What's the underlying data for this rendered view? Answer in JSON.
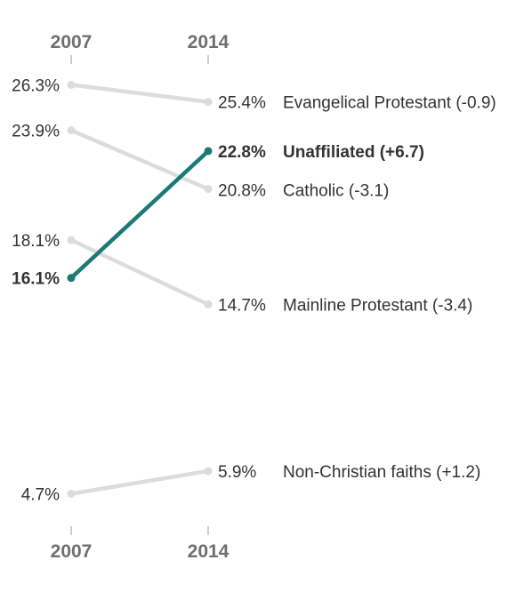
{
  "chart_data": {
    "type": "line",
    "x": [
      "2007",
      "2014"
    ],
    "highlight_color": "#1b7a78",
    "muted_color": "#dcdcdc",
    "series": [
      {
        "name": "Evangelical Protestant",
        "values": [
          26.3,
          25.4
        ],
        "start_label": "26.3%",
        "end_label": "25.4%",
        "series_label": "Evangelical Protestant (-0.9)",
        "highlight": false
      },
      {
        "name": "Unaffiliated",
        "values": [
          16.1,
          22.8
        ],
        "start_label": "16.1%",
        "end_label": "22.8%",
        "series_label": "Unaffiliated (+6.7)",
        "highlight": true
      },
      {
        "name": "Catholic",
        "values": [
          23.9,
          20.8
        ],
        "start_label": "23.9%",
        "end_label": "20.8%",
        "series_label": "Catholic (-3.1)",
        "highlight": false
      },
      {
        "name": "Mainline Protestant",
        "values": [
          18.1,
          14.7
        ],
        "start_label": "18.1%",
        "end_label": "14.7%",
        "series_label": "Mainline Protestant (-3.4)",
        "highlight": false
      },
      {
        "name": "Non-Christian faiths",
        "values": [
          4.7,
          5.9
        ],
        "start_label": "4.7%",
        "end_label": "5.9%",
        "series_label": "Non-Christian faiths (+1.2)",
        "highlight": false
      }
    ]
  }
}
